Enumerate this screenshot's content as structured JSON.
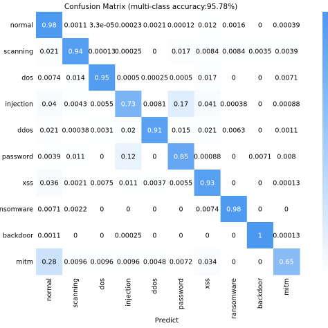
{
  "chart_data": {
    "type": "heatmap",
    "title": "Confusion Matrix (multi-class accuracy:95.78%)",
    "xlabel": "Predict",
    "ylabel": "",
    "row_labels": [
      "normal",
      "scanning",
      "dos",
      "injection",
      "ddos",
      "password",
      "xss",
      "ransomware",
      "backdoor",
      "mitm"
    ],
    "col_labels": [
      "normal",
      "scanning",
      "dos",
      "injection",
      "ddos",
      "password",
      "xss",
      "ransomware",
      "backdoor",
      "mitm"
    ],
    "cell_labels": [
      [
        "0.98",
        "0.0011",
        "3.3e-05",
        "0.00023",
        "0.0021",
        "0.00012",
        "0.012",
        "0.0016",
        "0",
        "0.00039"
      ],
      [
        "0.021",
        "0.94",
        "0.00013",
        "0.00025",
        "0",
        "0.017",
        "0.0084",
        "0.0084",
        "0.0035",
        "0.0039"
      ],
      [
        "0.0074",
        "0.014",
        "0.95",
        "0.0005",
        "0.00025",
        "0.0005",
        "0.017",
        "0",
        "0",
        "0.0071"
      ],
      [
        "0.04",
        "0.0043",
        "0.0055",
        "0.73",
        "0.0081",
        "0.17",
        "0.041",
        "0.00038",
        "0",
        "0.00088"
      ],
      [
        "0.021",
        "0.00038",
        "0.0031",
        "0.02",
        "0.91",
        "0.015",
        "0.021",
        "0.0063",
        "0",
        "0.0011"
      ],
      [
        "0.0039",
        "0.011",
        "0",
        "0.12",
        "0",
        "0.85",
        "0.00088",
        "0",
        "0.0071",
        "0.008"
      ],
      [
        "0.036",
        "0.0021",
        "0.0075",
        "0.011",
        "0.0037",
        "0.0055",
        "0.93",
        "0",
        "0",
        "0.00013"
      ],
      [
        "0.0071",
        "0.0022",
        "0",
        "0",
        "0",
        "0",
        "0.0074",
        "0.98",
        "0",
        "0"
      ],
      [
        "0.0011",
        "0",
        "0",
        "0.00025",
        "0",
        "0",
        "0",
        "0",
        "1",
        "0.00013"
      ],
      [
        "0.28",
        "0.0096",
        "0.0096",
        "0.0096",
        "0.0048",
        "0.0072",
        "0.034",
        "0",
        "0",
        "0.65"
      ]
    ],
    "value_range": [
      0,
      1
    ],
    "colormap": {
      "low": "#ffffff",
      "high": "#4a98f0"
    }
  }
}
